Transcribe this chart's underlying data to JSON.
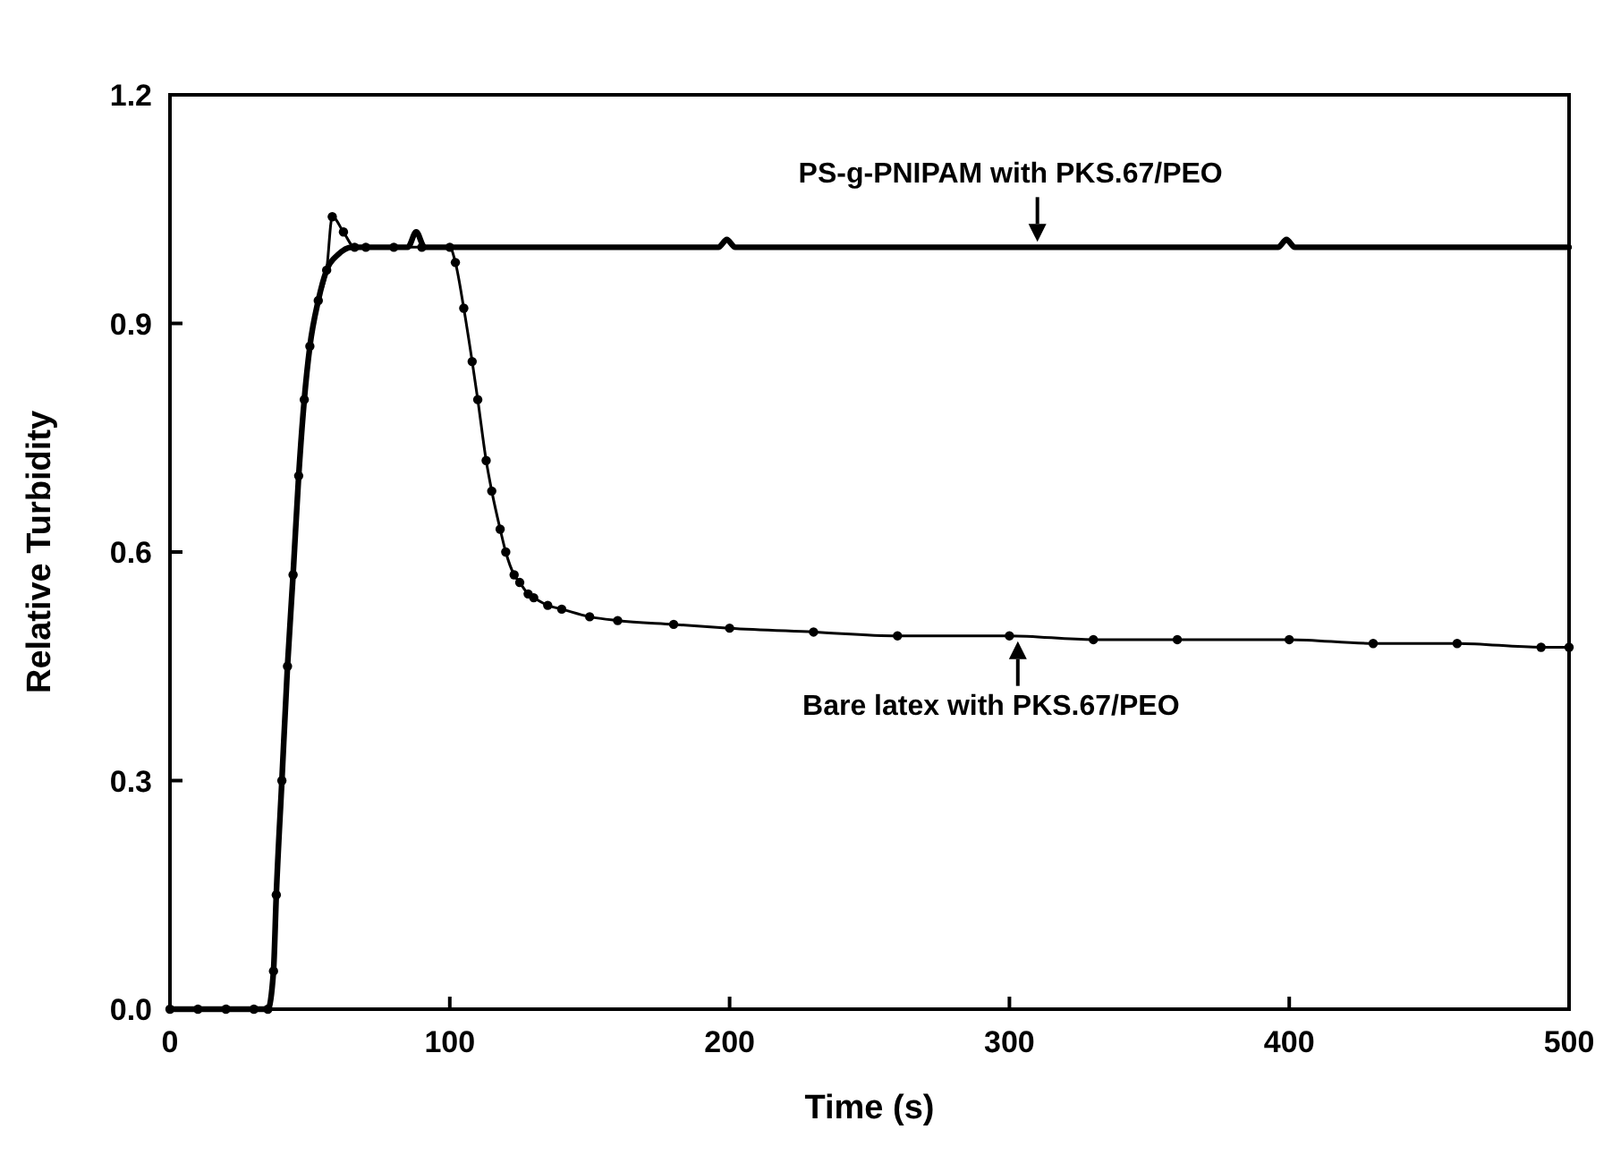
{
  "chart_data": {
    "type": "line",
    "xlabel": "Time (s)",
    "ylabel": "Relative Turbidity",
    "xlim": [
      0,
      500
    ],
    "ylim": [
      0,
      1.2
    ],
    "xticks": [
      0,
      100,
      200,
      300,
      400,
      500
    ],
    "yticks": [
      {
        "value": 0,
        "label": "0.0"
      },
      0.3,
      0.6,
      0.9,
      {
        "value": 1.2,
        "label": "1.2"
      }
    ],
    "grid": false,
    "series": [
      {
        "color": "#000000",
        "x": [
          0,
          10,
          20,
          30,
          35,
          37,
          38,
          40,
          42,
          44,
          46,
          48,
          50,
          53,
          56,
          60,
          65,
          70,
          80,
          85,
          88,
          91,
          100,
          120,
          150,
          196,
          199,
          202,
          240,
          270,
          300,
          310,
          350,
          370,
          396,
          399,
          402,
          450,
          500
        ],
        "values": [
          0,
          0,
          0,
          0,
          0,
          0.05,
          0.15,
          0.3,
          0.45,
          0.57,
          0.7,
          0.8,
          0.87,
          0.93,
          0.97,
          0.99,
          1.0,
          1.0,
          1.0,
          1.0,
          1.02,
          1.0,
          1.0,
          1.0,
          1.0,
          1.0,
          1.01,
          1.0,
          1.0,
          1.0,
          1.0,
          1.0,
          1.0,
          1.0,
          1.0,
          1.01,
          1.0,
          1.0,
          1.0
        ]
      },
      {
        "color": "#000000",
        "marker": "circle",
        "x": [
          0,
          10,
          20,
          30,
          35,
          37,
          38,
          40,
          42,
          44,
          46,
          48,
          50,
          53,
          56,
          58,
          62,
          66,
          70,
          80,
          90,
          100,
          102,
          105,
          108,
          110,
          113,
          115,
          118,
          120,
          123,
          125,
          128,
          130,
          135,
          140,
          150,
          160,
          180,
          200,
          230,
          260,
          300,
          330,
          360,
          400,
          430,
          460,
          490,
          500
        ],
        "values": [
          0,
          0,
          0,
          0,
          0,
          0.05,
          0.15,
          0.3,
          0.45,
          0.57,
          0.7,
          0.8,
          0.87,
          0.93,
          0.97,
          1.04,
          1.02,
          1.0,
          1.0,
          1.0,
          1.0,
          1.0,
          0.98,
          0.92,
          0.85,
          0.8,
          0.72,
          0.68,
          0.63,
          0.6,
          0.57,
          0.56,
          0.545,
          0.54,
          0.53,
          0.525,
          0.515,
          0.51,
          0.505,
          0.5,
          0.495,
          0.49,
          0.49,
          0.485,
          0.485,
          0.485,
          0.48,
          0.48,
          0.475,
          0.475
        ]
      }
    ],
    "annotations": [
      {
        "text": "PS-g-PNIPAM with PKS.67/PEO",
        "x": 310,
        "y": 1.0
      },
      {
        "text": "Bare latex with PKS.67/PEO",
        "x": 303,
        "y": 0.49
      }
    ]
  }
}
